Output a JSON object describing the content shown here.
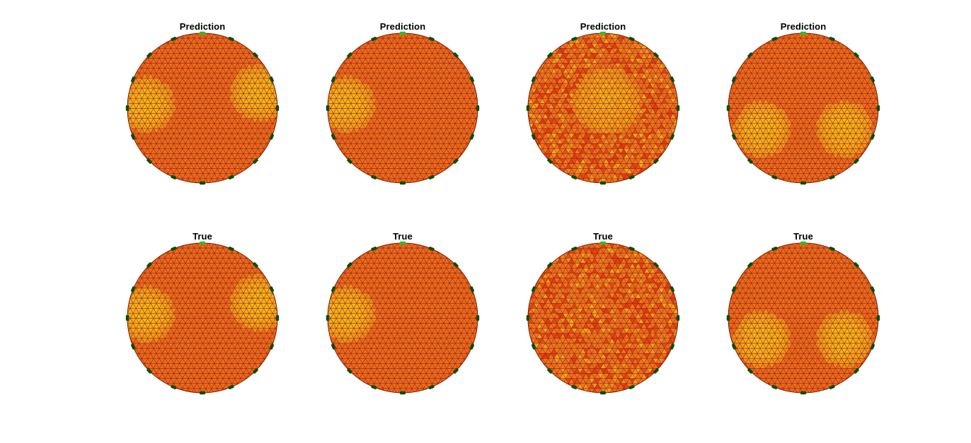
{
  "figure": {
    "background": "#ffffff",
    "mesh_fill": "#ee6a1e",
    "mesh_edge": "#7a1d08",
    "inclusion_fill": "#f6b41e",
    "low_spot_fill": "#e4380e",
    "electrode_color": "#0a4e0a",
    "reference_electrode_color": "#22c422",
    "electrode_count": 16
  },
  "panels": [
    {
      "title": "Prediction",
      "row": "prediction",
      "column": 1,
      "inclusions": [
        "left",
        "right"
      ],
      "noisy": false
    },
    {
      "title": "Prediction",
      "row": "prediction",
      "column": 2,
      "inclusions": [
        "left"
      ],
      "noisy": false
    },
    {
      "title": "Prediction",
      "row": "prediction",
      "column": 3,
      "inclusions": [
        "center"
      ],
      "noisy": true
    },
    {
      "title": "Prediction",
      "row": "prediction",
      "column": 4,
      "inclusions": [
        "lower-left",
        "lower-right"
      ],
      "noisy": false
    },
    {
      "title": "True",
      "row": "true",
      "column": 1,
      "inclusions": [
        "left",
        "right"
      ],
      "noisy": false
    },
    {
      "title": "True",
      "row": "true",
      "column": 2,
      "inclusions": [
        "left"
      ],
      "noisy": false
    },
    {
      "title": "True",
      "row": "true",
      "column": 3,
      "inclusions": [],
      "noisy": true
    },
    {
      "title": "True",
      "row": "true",
      "column": 4,
      "inclusions": [
        "lower-left",
        "lower-right"
      ],
      "noisy": false
    }
  ]
}
